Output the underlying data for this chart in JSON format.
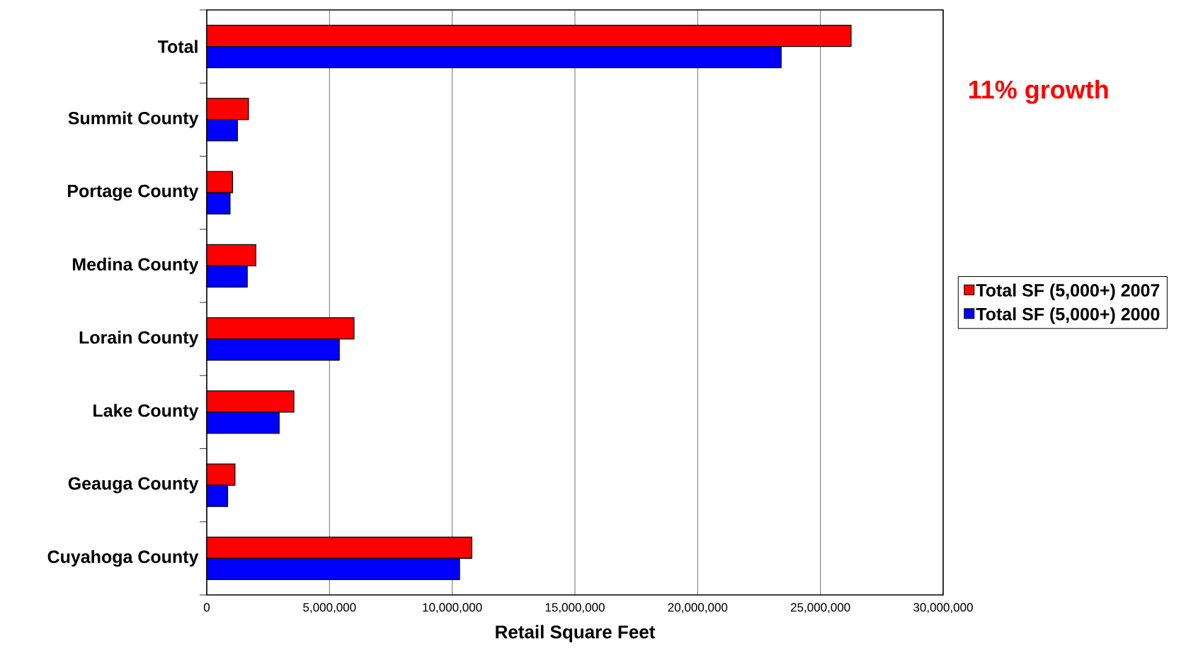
{
  "chart_data": {
    "type": "bar",
    "orientation": "horizontal",
    "xlabel": "Retail Square Feet",
    "categories": [
      "Total",
      "Summit County",
      "Portage County",
      "Medina County",
      "Lorain County",
      "Lake County",
      "Geauga County",
      "Cuyahoga County"
    ],
    "series": [
      {
        "name": "Total SF (5,000+) 2007",
        "color": "#ff0000",
        "values": [
          26250000,
          1700000,
          1050000,
          2000000,
          6000000,
          3550000,
          1150000,
          10800000
        ]
      },
      {
        "name": "Total SF (5,000+) 2000",
        "color": "#0000ff",
        "values": [
          23400000,
          1250000,
          950000,
          1650000,
          5400000,
          2950000,
          850000,
          10300000
        ]
      }
    ],
    "xlim": [
      0,
      30000000
    ],
    "xticks": [
      0,
      {
        "value": 5000000,
        "label": "5,000,000"
      },
      {
        "value": 10000000,
        "label": "10,000,000"
      },
      {
        "value": 15000000,
        "label": "15,000,000"
      },
      {
        "value": 20000000,
        "label": "20,000,000"
      },
      {
        "value": 25000000,
        "label": "25,000,000"
      },
      {
        "value": 30000000,
        "label": "30,000,000"
      }
    ],
    "grid": "x",
    "legend": "right",
    "annotations": [
      "11% growth"
    ]
  }
}
